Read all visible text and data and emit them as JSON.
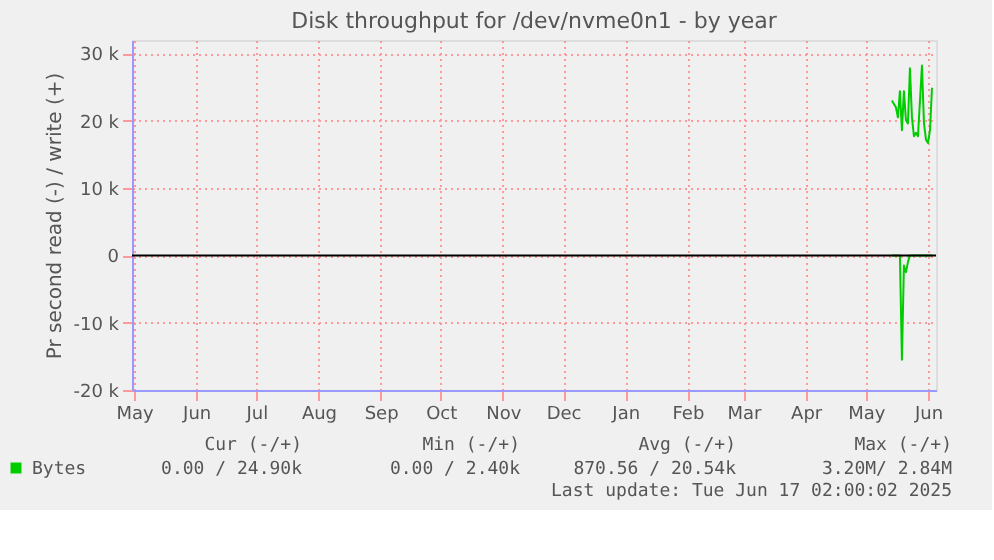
{
  "chart_data": {
    "type": "line",
    "title": "Disk throughput for /dev/nvme0n1 - by year",
    "ylabel": "Pr second read (-) / write (+)",
    "xlim": [
      "2024-05-14",
      "2025-06-19"
    ],
    "xticks": [
      {
        "value": "2024-05-15",
        "label": "May"
      },
      {
        "value": "2024-06-15",
        "label": "Jun"
      },
      {
        "value": "2024-07-15",
        "label": "Jul"
      },
      {
        "value": "2024-08-15",
        "label": "Aug"
      },
      {
        "value": "2024-09-15",
        "label": "Sep"
      },
      {
        "value": "2024-10-15",
        "label": "Oct"
      },
      {
        "value": "2024-11-15",
        "label": "Nov"
      },
      {
        "value": "2024-12-15",
        "label": "Dec"
      },
      {
        "value": "2025-01-15",
        "label": "Jan"
      },
      {
        "value": "2025-02-15",
        "label": "Feb"
      },
      {
        "value": "2025-03-15",
        "label": "Mar"
      },
      {
        "value": "2025-04-15",
        "label": "Apr"
      },
      {
        "value": "2025-05-15",
        "label": "May"
      },
      {
        "value": "2025-06-15",
        "label": "Jun"
      }
    ],
    "ylim": [
      -20000,
      32000
    ],
    "yticks": [
      {
        "value": -20000,
        "label": "-20 k"
      },
      {
        "value": -10000,
        "label": "-10 k"
      },
      {
        "value": 0,
        "label": "0"
      },
      {
        "value": 10000,
        "label": "10 k"
      },
      {
        "value": 20000,
        "label": "20 k"
      },
      {
        "value": 30000,
        "label": "30 k"
      }
    ],
    "grid": true,
    "legend": "bottom",
    "ref_lines": [
      {
        "axis": "y",
        "value": 0,
        "color": "#000000"
      }
    ],
    "series": [
      {
        "name": "Bytes",
        "color": "#00cc00",
        "x": [
          "2025-05-28",
          "2025-05-30",
          "2025-05-31",
          "2025-06-01",
          "2025-06-02",
          "2025-06-03",
          "2025-06-04",
          "2025-06-05",
          "2025-06-06",
          "2025-06-07",
          "2025-06-08",
          "2025-06-09",
          "2025-06-10",
          "2025-06-12",
          "2025-06-13",
          "2025-06-14",
          "2025-06-15",
          "2025-06-16",
          "2025-06-17"
        ],
        "values": [
          23000,
          22000,
          20500,
          24400,
          18600,
          24400,
          20100,
          19600,
          27800,
          20500,
          17700,
          18200,
          17700,
          28200,
          19600,
          17200,
          16700,
          18600,
          24900
        ]
      },
      {
        "color": "#00cc00",
        "x": [
          "2025-05-28",
          "2025-06-01",
          "2025-06-02",
          "2025-06-03",
          "2025-06-04",
          "2025-06-05",
          "2025-06-06",
          "2025-06-17"
        ],
        "values": [
          0,
          0,
          -15500,
          -1500,
          -2500,
          -1000,
          0,
          0
        ]
      }
    ],
    "annotations": [
      "Cur (-/+)",
      "Min (-/+)",
      "Avg (-/+)",
      "Max (-/+)",
      "0.00 / 24.90k",
      "0.00 /  2.40k",
      "870.56 / 20.54k",
      "3.20M/  2.84M",
      "Last update: Tue Jun 17 02:00:02 2025"
    ]
  }
}
